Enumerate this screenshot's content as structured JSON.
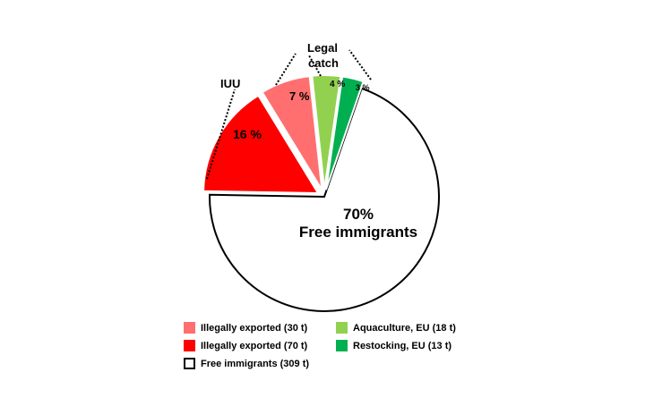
{
  "chart_data": {
    "type": "pie",
    "title": "",
    "slices": [
      {
        "label": "Free immigrants",
        "value": 70,
        "display": "70%",
        "color": "#ffffff",
        "outline": "#000000",
        "exploded": false
      },
      {
        "label": "Illegally exported",
        "value": 16,
        "display": "16 %",
        "color": "#ff0000",
        "exploded": true
      },
      {
        "label": "Illegally exported",
        "value": 7,
        "display": "7 %",
        "color": "#ff6f6f",
        "exploded": true
      },
      {
        "label": "Aquaculture, EU",
        "value": 4,
        "display": "4 %",
        "color": "#92d050",
        "exploded": true
      },
      {
        "label": "Restocking, EU",
        "value": 3,
        "display": "3 %",
        "color": "#00b050",
        "exploded": true
      }
    ],
    "main_label": {
      "line1": "70%",
      "line2": "Free immigrants"
    },
    "annotations": [
      {
        "text": "IUU"
      },
      {
        "text_line1": "Legal",
        "text_line2": "catch"
      }
    ],
    "legend": [
      {
        "label": "Illegally exported  (30 t)",
        "color": "#ff6f6f"
      },
      {
        "label": "Illegally exported (70 t)",
        "color": "#ff0000"
      },
      {
        "label": "Free immigrants (309 t)",
        "color": "#ffffff",
        "outline": "#000000"
      },
      {
        "label": "Aquaculture, EU (18 t)",
        "color": "#92d050"
      },
      {
        "label": "Restocking, EU (13 t)",
        "color": "#00b050"
      }
    ]
  }
}
